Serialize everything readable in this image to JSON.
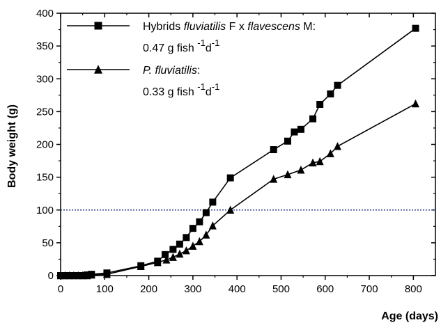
{
  "chart_data": {
    "type": "line",
    "xlabel": "Age (days)",
    "ylabel": "Body weight (g)",
    "xlim": [
      0,
      850
    ],
    "ylim": [
      0,
      400
    ],
    "x_ticks": [
      0,
      100,
      200,
      300,
      400,
      500,
      600,
      700,
      800
    ],
    "y_ticks": [
      0,
      50,
      100,
      150,
      200,
      250,
      300,
      350,
      400
    ],
    "x_tick_labels": [
      "0",
      "100",
      "200",
      "300",
      "400",
      "500",
      "600",
      "700",
      "800"
    ],
    "y_tick_labels": [
      "0",
      "50",
      "100",
      "150",
      "200",
      "250",
      "300",
      "350",
      "400"
    ],
    "reference_line": {
      "y": 100,
      "style": "dotted",
      "color": "#1f3a8a"
    },
    "grid": false,
    "legend_position": "top-left",
    "series": [
      {
        "name": "Hybrids fluviatilis F x flavescens M",
        "legend_parts": [
          {
            "text": "Hybrids ",
            "italic": false
          },
          {
            "text": "fluviatilis",
            "italic": true
          },
          {
            "text": " F x ",
            "italic": false
          },
          {
            "text": "flavescens",
            "italic": true
          },
          {
            "text": " M:",
            "italic": false
          }
        ],
        "rate": {
          "value": "0.47 g fish",
          "exp1": "-1",
          "mid": "d",
          "exp2": "-1"
        },
        "marker": "square",
        "x": [
          0,
          10,
          20,
          30,
          40,
          50,
          60,
          70,
          105,
          182,
          220,
          237,
          255,
          270,
          285,
          300,
          315,
          330,
          345,
          385,
          483,
          515,
          530,
          545,
          572,
          588,
          612,
          628,
          805
        ],
        "values": [
          0,
          0,
          0,
          0,
          0,
          0,
          1,
          2,
          4,
          15,
          22,
          32,
          40,
          48,
          58,
          72,
          82,
          96,
          112,
          149,
          192,
          205,
          219,
          223,
          239,
          261,
          277,
          290,
          377
        ]
      },
      {
        "name": "P. fluviatilis",
        "legend_parts": [
          {
            "text": "P.  fluviatilis",
            "italic": true
          },
          {
            "text": ":",
            "italic": false
          }
        ],
        "rate": {
          "value": "0.33 g fish",
          "exp1": "-1",
          "mid": "d",
          "exp2": "-1"
        },
        "marker": "triangle",
        "x": [
          0,
          10,
          20,
          30,
          40,
          50,
          60,
          70,
          105,
          182,
          220,
          240,
          255,
          270,
          285,
          300,
          315,
          330,
          345,
          385,
          483,
          515,
          545,
          572,
          588,
          612,
          628,
          805
        ],
        "values": [
          0,
          0,
          0,
          0,
          0,
          0,
          0,
          1,
          2,
          14,
          20,
          24,
          28,
          33,
          38,
          45,
          52,
          62,
          76,
          100,
          147,
          154,
          161,
          172,
          174,
          186,
          197,
          262
        ]
      }
    ]
  }
}
